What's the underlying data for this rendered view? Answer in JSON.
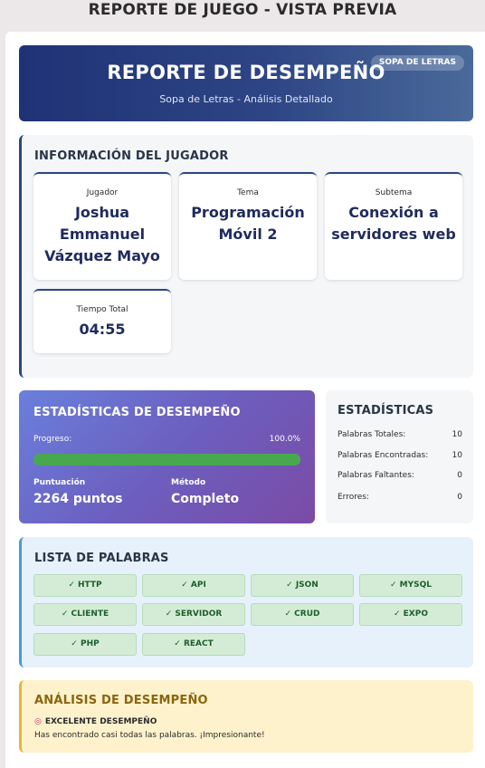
{
  "page_title": "REPORTE DE JUEGO - VISTA PREVIA",
  "header": {
    "title": "REPORTE DE DESEMPEÑO",
    "subtitle": "Sopa de Letras - Análisis Detallado",
    "badge": "SOPA DE LETRAS"
  },
  "player": {
    "section_title": "INFORMACIÓN DEL JUGADOR",
    "cards": [
      {
        "label": "Jugador",
        "value": "Joshua Emmanuel Vázquez Mayo"
      },
      {
        "label": "Tema",
        "value": "Programación Móvil 2"
      },
      {
        "label": "Subtema",
        "value": "Conexión a servidores web"
      },
      {
        "label": "Tiempo Total",
        "value": "04:55"
      }
    ]
  },
  "performance": {
    "section_title": "ESTADÍSTICAS DE DESEMPEÑO",
    "progress_label": "Progreso:",
    "progress_text": "100.0%",
    "progress_fraction": 1.0,
    "score_label": "Puntuación",
    "score_value": "2264 puntos",
    "method_label": "Método",
    "method_value": "Completo"
  },
  "stats": {
    "section_title": "ESTADÍSTICAS",
    "rows": [
      {
        "label": "Palabras Totales:",
        "value": "10"
      },
      {
        "label": "Palabras Encontradas:",
        "value": "10"
      },
      {
        "label": "Palabras Faltantes:",
        "value": "0"
      },
      {
        "label": "Errores:",
        "value": "0"
      }
    ]
  },
  "words": {
    "section_title": "LISTA DE PALABRAS",
    "items": [
      "✓ HTTP",
      "✓ API",
      "✓ JSON",
      "✓ MYSQL",
      "✓ CLIENTE",
      "✓ SERVIDOR",
      "✓ CRUD",
      "✓ EXPO",
      "✓ PHP",
      "✓ REACT"
    ]
  },
  "analysis": {
    "section_title": "ANÁLISIS DE DESEMPEÑO",
    "icon": "target-icon",
    "heading": "EXCELENTE DESEMPEÑO",
    "message": "Has encontrado casi todas las palabras. ¡Impresionante!"
  },
  "colors": {
    "header_start": "#1f3275",
    "progress_fill": "#48a84f",
    "chip_bg": "#d4ecd6",
    "analysis_bg": "#fdf2cc"
  }
}
